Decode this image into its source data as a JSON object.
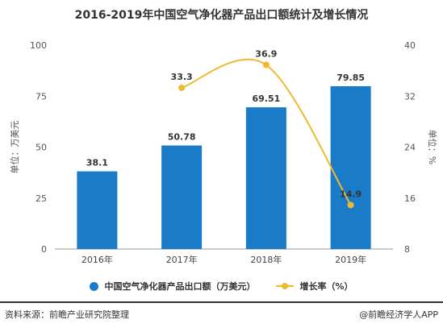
{
  "title": "2016-2019年中国空气净化器产品出口额统计及增长情况",
  "chart_data": {
    "type": "bar",
    "categories": [
      "2016年",
      "2017年",
      "2018年",
      "2019年"
    ],
    "series": [
      {
        "name": "中国空气净化器产品出口额（万美元）",
        "type": "bar",
        "axis": "left",
        "color": "#1a7cc9",
        "values": [
          38.1,
          50.78,
          69.51,
          79.85
        ]
      },
      {
        "name": "增长率（%）",
        "type": "line",
        "axis": "right",
        "color": "#f0b92e",
        "values": [
          null,
          33.3,
          36.9,
          14.9
        ]
      }
    ],
    "left_axis": {
      "label": "单位：万美元",
      "ylim": [
        0,
        100
      ],
      "ticks": [
        0,
        25,
        50,
        75,
        100
      ]
    },
    "right_axis": {
      "label": "单位：%",
      "ylim": [
        8,
        40
      ],
      "ticks": [
        8,
        16,
        24,
        32,
        40
      ]
    },
    "legend_position": "bottom"
  },
  "legend": {
    "bar_label": "中国空气净化器产品出口额（万美元）",
    "line_label": "增长率（%）"
  },
  "footer": {
    "source": "资料来源：前瞻产业研究院整理",
    "brand": "@前瞻经济学人APP"
  }
}
